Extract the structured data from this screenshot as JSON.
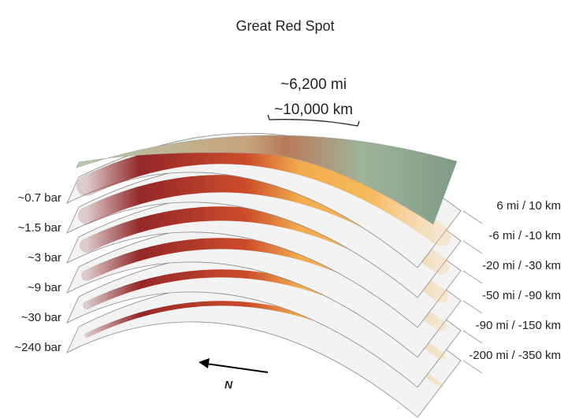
{
  "title": "Great Red Spot",
  "scale": {
    "miles": "~6,200 mi",
    "kilometers": "~10,000 km"
  },
  "layers": [
    {
      "pressure": "~0.7 bar",
      "depth": "6 mi / 10 km"
    },
    {
      "pressure": "~1.5 bar",
      "depth": "-6 mi / -10 km"
    },
    {
      "pressure": "~3 bar",
      "depth": "-20 mi / -30 km"
    },
    {
      "pressure": "~9 bar",
      "depth": "-50 mi / -90 km"
    },
    {
      "pressure": "~30 bar",
      "depth": "-90 mi / -150 km"
    },
    {
      "pressure": "~240 bar",
      "depth": "-200 mi / -350 km"
    }
  ],
  "compass": "N"
}
